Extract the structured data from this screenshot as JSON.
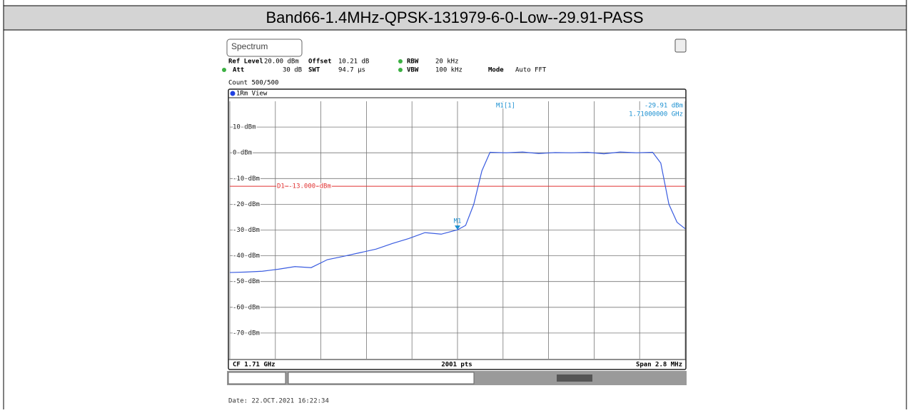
{
  "table": {
    "title": "Band66-1.4MHz-QPSK-131979-6-0-Low--29.91-PASS"
  },
  "chart_data": {
    "type": "line",
    "tab": "Spectrum",
    "settings": [
      {
        "label": "Ref Level",
        "value": "20.00 dBm"
      },
      {
        "label": "Offset",
        "value": "10.21 dB"
      },
      {
        "label": "RBW",
        "value": "20 kHz"
      },
      {
        "label": "Att",
        "value": "30 dB"
      },
      {
        "label": "SWT",
        "value": "94.7 µs"
      },
      {
        "label": "VBW",
        "value": "100 kHz"
      },
      {
        "label": "Mode",
        "value": "Auto FFT"
      }
    ],
    "count": "Count 500/500",
    "view": "1Rm View",
    "color": "#3a5ce0",
    "x": [
      1.7086,
      1.7087,
      1.7088,
      1.7089,
      1.709,
      1.7091,
      1.7092,
      1.7093,
      1.7094,
      1.7095,
      1.7096,
      1.7097,
      1.7098,
      1.7099,
      1.71,
      1.71005,
      1.7101,
      1.71015,
      1.7102,
      1.7103,
      1.7104,
      1.7105,
      1.7106,
      1.7107,
      1.7108,
      1.7109,
      1.711,
      1.7111,
      1.7112,
      1.71125,
      1.7113,
      1.71135,
      1.7114
    ],
    "values": [
      -46.5,
      -46.3,
      -46,
      -45.2,
      -44.2,
      -44.6,
      -41.5,
      -40.2,
      -38.8,
      -37.4,
      -35.2,
      -33.3,
      -31,
      -31.6,
      -29.91,
      -28.2,
      -20,
      -7,
      0.2,
      0,
      0.3,
      -0.3,
      0.1,
      0,
      0.2,
      -0.4,
      0.3,
      0,
      0.2,
      -4,
      -20,
      -27,
      -29.5
    ],
    "xlim": [
      1.7086,
      1.7114
    ],
    "ylim": [
      -80,
      20
    ],
    "yticks": [
      {
        "value": 10,
        "label": "10 dBm"
      },
      {
        "value": 0,
        "label": "0 dBm"
      },
      {
        "value": -10,
        "label": "-10 dBm"
      },
      {
        "value": -20,
        "label": "-20 dBm"
      },
      {
        "value": -30,
        "label": "-30 dBm"
      },
      {
        "value": -40,
        "label": "-40 dBm"
      },
      {
        "value": -50,
        "label": "-50 dBm"
      },
      {
        "value": -60,
        "label": "-60 dBm"
      },
      {
        "value": -70,
        "label": "-70 dBm"
      }
    ],
    "grid": true,
    "marker": {
      "label": "M1",
      "readout": "M1[1]",
      "x": 1.71,
      "value": -29.91,
      "value_label": "-29.91 dBm",
      "x_label": "1.71000000 GHz",
      "color": "#1a8fd0"
    },
    "display_line": {
      "label": "D1 -13.000 dBm",
      "value": -13,
      "color": "#e03030"
    },
    "footer": {
      "center_frequency": "CF 1.71 GHz",
      "points": "2001 pts",
      "span": "Span 2.8 MHz"
    },
    "date": "Date: 22.OCT.2021  16:22:34"
  }
}
